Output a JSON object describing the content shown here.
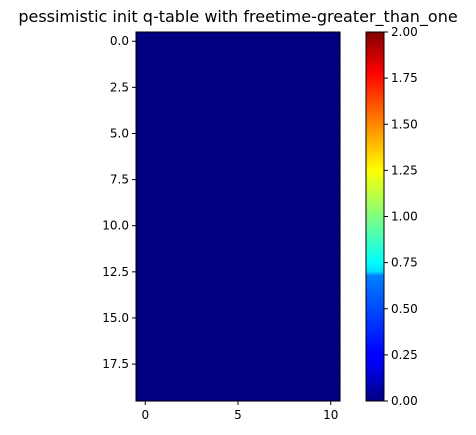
{
  "chart_data": {
    "type": "heatmap",
    "title": "pessimistic init q-table with freetime-greater_than_one",
    "xlabel": "",
    "ylabel": "",
    "rows": 20,
    "cols": 11,
    "values": [
      [
        0,
        0,
        0,
        0,
        0,
        0,
        0,
        0,
        0,
        0,
        0
      ],
      [
        0,
        0,
        0,
        0,
        0,
        0,
        0,
        0,
        0,
        0,
        0
      ],
      [
        0,
        0,
        0,
        0,
        0,
        0,
        0,
        0,
        0,
        0,
        0
      ],
      [
        0,
        0,
        0,
        0,
        0,
        0,
        0,
        0,
        0,
        0,
        0
      ],
      [
        0,
        0,
        0,
        0,
        0,
        0,
        0,
        0,
        0,
        0,
        0
      ],
      [
        0,
        0,
        0,
        0,
        0,
        0,
        0,
        0,
        0,
        0,
        0
      ],
      [
        0,
        0,
        0,
        0,
        0,
        0,
        0,
        0,
        0,
        0,
        0
      ],
      [
        0,
        0,
        0,
        0,
        0,
        0,
        0,
        0,
        0,
        0,
        0
      ],
      [
        0,
        0,
        0,
        0,
        0,
        0,
        0,
        0,
        0,
        0,
        0
      ],
      [
        0,
        0,
        0,
        0,
        0,
        0,
        0,
        0,
        0,
        0,
        0
      ],
      [
        0,
        0,
        0,
        0,
        0,
        0,
        0,
        0,
        0,
        0,
        0
      ],
      [
        0,
        0,
        0,
        0,
        0,
        0,
        0,
        0,
        0,
        0,
        0
      ],
      [
        0,
        0,
        0,
        0,
        0,
        0,
        0,
        0,
        0,
        0,
        0
      ],
      [
        0,
        0,
        0,
        0,
        0,
        0,
        0,
        0,
        0,
        0,
        0
      ],
      [
        0,
        0,
        0,
        0,
        0,
        0,
        0,
        0,
        0,
        0,
        0
      ],
      [
        0,
        0,
        0,
        0,
        0,
        0,
        0,
        0,
        0,
        0,
        0
      ],
      [
        0,
        0,
        0,
        0,
        0,
        0,
        0,
        0,
        0,
        0,
        0
      ],
      [
        0,
        0,
        0,
        0,
        0,
        0,
        0,
        0,
        0,
        0,
        0
      ],
      [
        0,
        0,
        0,
        0,
        0,
        0,
        0,
        0,
        0,
        0,
        0
      ],
      [
        0,
        0,
        0,
        0,
        0,
        0,
        0,
        0,
        0,
        0,
        0
      ]
    ],
    "xlim": [
      -0.5,
      10.5
    ],
    "ylim": [
      19.5,
      -0.5
    ],
    "x_ticks": [
      0,
      5,
      10
    ],
    "x_tick_labels": [
      "0",
      "5",
      "10"
    ],
    "y_ticks": [
      0,
      2.5,
      5,
      7.5,
      10,
      12.5,
      15,
      17.5
    ],
    "y_tick_labels": [
      "0.0",
      "2.5",
      "5.0",
      "7.5",
      "10.0",
      "12.5",
      "15.0",
      "17.5"
    ],
    "colormap": "jet",
    "colorbar": {
      "vmin": 0,
      "vmax": 2,
      "ticks": [
        0,
        0.25,
        0.5,
        0.75,
        1,
        1.25,
        1.5,
        1.75,
        2
      ],
      "tick_labels": [
        "0.00",
        "0.25",
        "0.50",
        "0.75",
        "1.00",
        "1.25",
        "1.50",
        "1.75",
        "2.00"
      ]
    }
  }
}
